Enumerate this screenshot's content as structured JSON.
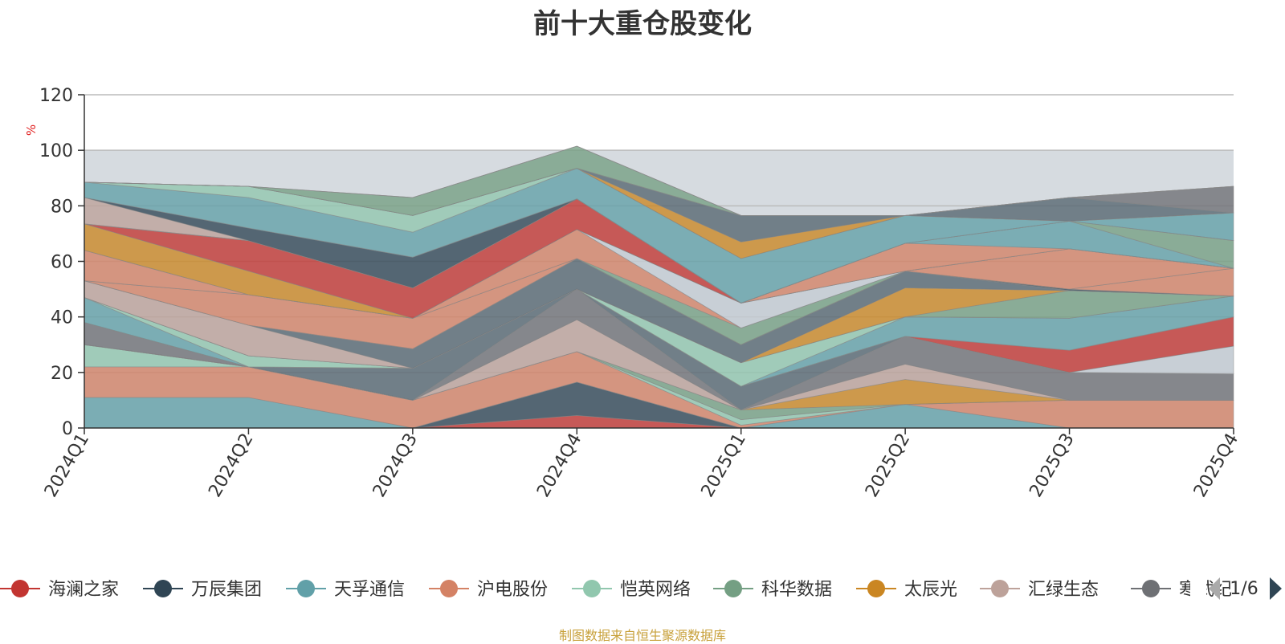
{
  "chart_data": {
    "type": "area",
    "stacked": true,
    "title": "前十大重仓股变化",
    "ylabel": "%",
    "ylim": [
      0,
      120
    ],
    "y_ticks": [
      "0",
      "20",
      "40",
      "60",
      "80",
      "100",
      "120"
    ],
    "categories": [
      "2024Q1",
      "2024Q2",
      "2024Q3",
      "2024Q4",
      "2025Q1",
      "2025Q2",
      "2025Q3",
      "2025Q4"
    ],
    "grid": true,
    "background_band": [
      0,
      100
    ],
    "legend_position": "bottom",
    "legend_page": "1/6",
    "series": [
      {
        "name": "海澜之家",
        "color": "#c23531",
        "values": [
          0,
          0,
          0,
          4.5,
          0,
          0,
          0,
          0
        ]
      },
      {
        "name": "万辰集团",
        "color": "#2f4554",
        "values": [
          0,
          0,
          0,
          12,
          0,
          0,
          0,
          0
        ]
      },
      {
        "name": "天孚通信",
        "color": "#61a0a8",
        "values": [
          11,
          11,
          0,
          0,
          0,
          8.5,
          0,
          0
        ]
      },
      {
        "name": "沪电股份",
        "color": "#d48265",
        "values": [
          11,
          11,
          10,
          11,
          1,
          0,
          10,
          10
        ]
      },
      {
        "name": "恺英网络",
        "color": "#91c7ae",
        "values": [
          8,
          0,
          0,
          0,
          2,
          0,
          0,
          0
        ]
      },
      {
        "name": "科华数据",
        "color": "#749f83",
        "values": [
          0,
          0,
          0,
          0,
          3.5,
          0,
          0,
          0
        ]
      },
      {
        "name": "太辰光",
        "color": "#ca8622",
        "values": [
          0,
          0,
          0,
          0,
          0,
          9,
          0,
          0
        ]
      },
      {
        "name": "汇绿生态",
        "color": "#bda29a",
        "values": [
          0,
          0,
          0,
          11.5,
          0,
          5.5,
          0,
          0
        ]
      }
    ],
    "extra_layers": [
      {
        "color": "#6e7074",
        "values": [
          8,
          0,
          0,
          11,
          0,
          10,
          10,
          9.5
        ]
      },
      {
        "color": "#546570",
        "values": [
          0,
          0,
          11.5,
          0,
          8.5,
          0,
          0,
          0
        ]
      },
      {
        "color": "#c4ccd3",
        "values": [
          0,
          0,
          0,
          0,
          0,
          0,
          0,
          10
        ]
      },
      {
        "color": "#c23531",
        "values": [
          0,
          0,
          0,
          0,
          0,
          0,
          8,
          10.5
        ]
      },
      {
        "color": "#61a0a8",
        "values": [
          9,
          0,
          0,
          0,
          0,
          7,
          11.5,
          7.5
        ]
      },
      {
        "color": "#91c7ae",
        "values": [
          0,
          4,
          0,
          0,
          8.5,
          0,
          0,
          0
        ]
      },
      {
        "color": "#749f83",
        "values": [
          0,
          0,
          0,
          0,
          0,
          0,
          10,
          0
        ]
      },
      {
        "color": "#ca8622",
        "values": [
          0,
          0,
          0,
          0,
          0,
          10.5,
          0,
          0
        ]
      },
      {
        "color": "#bda29a",
        "values": [
          6,
          11,
          0,
          0,
          0,
          0,
          0,
          0
        ]
      },
      {
        "color": "#546570",
        "values": [
          0,
          0,
          7,
          11,
          6.5,
          6,
          0,
          0
        ]
      },
      {
        "color": "#2f4554",
        "values": [
          0,
          0,
          0,
          0,
          0,
          0,
          0.5,
          0
        ]
      },
      {
        "color": "#d48265",
        "values": [
          0,
          11,
          11,
          0,
          0,
          0,
          0,
          10
        ]
      },
      {
        "color": "#749f83",
        "values": [
          0,
          0,
          0,
          0,
          6,
          0,
          0,
          0
        ]
      },
      {
        "color": "#d48265",
        "values": [
          11,
          0,
          0,
          10.5,
          0,
          0,
          14.5,
          0
        ]
      },
      {
        "color": "#c4ccd3",
        "values": [
          0,
          0,
          0,
          0,
          9,
          0,
          0,
          0
        ]
      },
      {
        "color": "#ca8622",
        "values": [
          9.5,
          8.5,
          0,
          0,
          0,
          0,
          0,
          0
        ]
      },
      {
        "color": "#c23531",
        "values": [
          0,
          11,
          11,
          11,
          0,
          0,
          0,
          0
        ]
      },
      {
        "color": "#d48265",
        "values": [
          0,
          0,
          0,
          0,
          0,
          10,
          0,
          0
        ]
      },
      {
        "color": "#61a0a8",
        "values": [
          0,
          0,
          0,
          0,
          0,
          0,
          10,
          0
        ]
      },
      {
        "color": "#749f83",
        "values": [
          0,
          0,
          0,
          0,
          0,
          0,
          0,
          10
        ]
      },
      {
        "color": "#bda29a",
        "values": [
          9.5,
          0,
          0,
          0,
          0,
          0,
          0,
          0
        ]
      },
      {
        "color": "#2f4554",
        "values": [
          0,
          4.5,
          11,
          0,
          0,
          0,
          0,
          0
        ]
      },
      {
        "color": "#61a0a8",
        "values": [
          5.5,
          11,
          9,
          11,
          16,
          10,
          0,
          10
        ]
      },
      {
        "color": "#91c7ae",
        "values": [
          0,
          4,
          6,
          0,
          0,
          0,
          0,
          0
        ]
      },
      {
        "color": "#ca8622",
        "values": [
          0,
          0,
          0,
          0,
          6,
          0,
          0,
          0
        ]
      },
      {
        "color": "#546570",
        "values": [
          0,
          0,
          0,
          0,
          9.5,
          0,
          8.5,
          0
        ]
      },
      {
        "color": "#6e7074",
        "values": [
          0,
          0,
          0,
          0,
          0,
          0,
          0,
          9.5
        ]
      },
      {
        "color": "#749f83",
        "values": [
          0,
          0,
          6.5,
          8,
          0,
          0,
          0,
          0
        ]
      },
      {
        "color": "#bda29a",
        "values": [
          0,
          0,
          0,
          0,
          0,
          0,
          0,
          0
        ]
      },
      {
        "color": "#6e7074",
        "values": [
          0,
          0,
          0,
          0,
          0,
          0,
          0,
          0
        ]
      }
    ],
    "legend_items": [
      {
        "label": "海澜之家",
        "color": "#c23531"
      },
      {
        "label": "万辰集团",
        "color": "#2f4554"
      },
      {
        "label": "天孚通信",
        "color": "#61a0a8"
      },
      {
        "label": "沪电股份",
        "color": "#d48265"
      },
      {
        "label": "恺英网络",
        "color": "#91c7ae"
      },
      {
        "label": "科华数据",
        "color": "#749f83"
      },
      {
        "label": "太辰光",
        "color": "#ca8622"
      },
      {
        "label": "汇绿生态",
        "color": "#bda29a"
      },
      {
        "label": "寒武纪",
        "color": "#6e7074"
      }
    ]
  },
  "source_note": "制图数据来自恒生聚源数据库"
}
